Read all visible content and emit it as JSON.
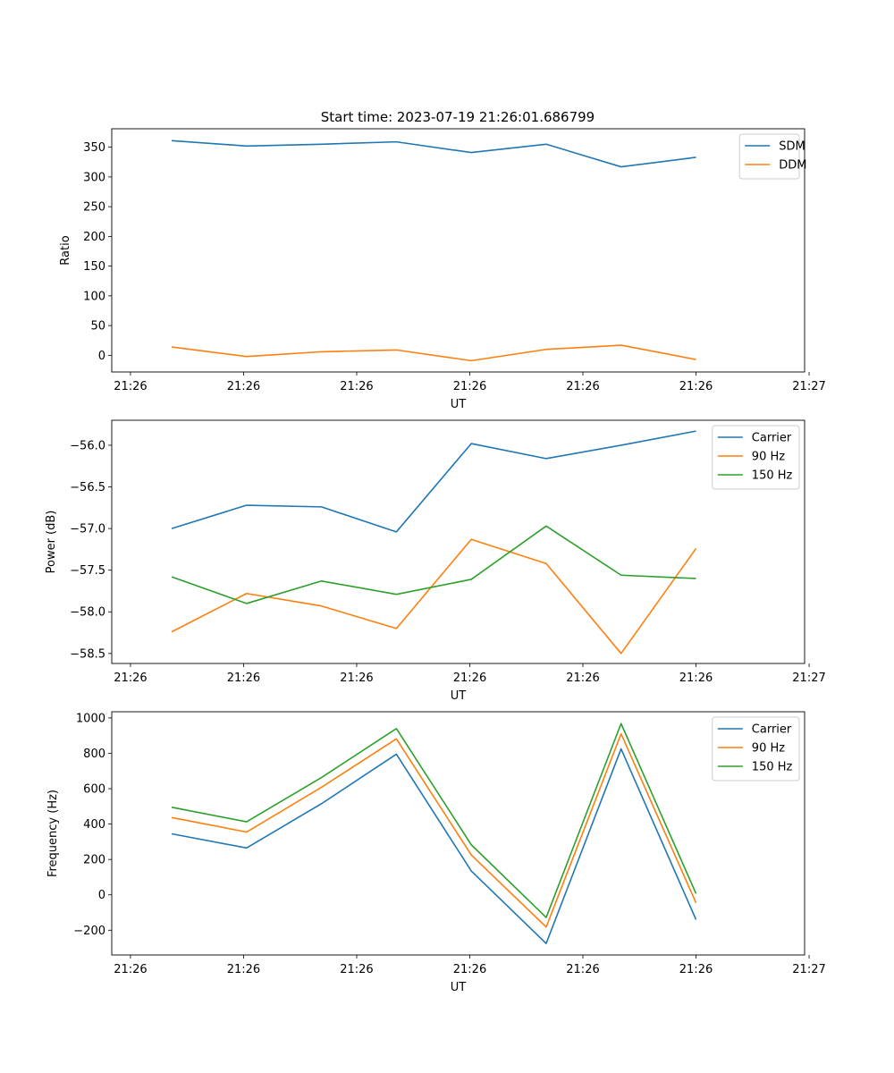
{
  "figure": {
    "title": "Start time: 2023-07-19 21:26:01.686799"
  },
  "colors": {
    "blue": "#1f77b4",
    "orange": "#ff7f0e",
    "green": "#2ca02c"
  },
  "chart_data": [
    {
      "type": "line",
      "title": "Start time: 2023-07-19 21:26:01.686799",
      "xlabel": "UT",
      "ylabel": "Ratio",
      "x": [
        1,
        2,
        3,
        4,
        5,
        6,
        7,
        8
      ],
      "xlim": [
        0.2,
        9.45
      ],
      "x_ticks": [
        0.45,
        1.96,
        3.47,
        4.98,
        6.49,
        8.0,
        9.51
      ],
      "x_tick_labels": [
        "21:26",
        "21:26",
        "21:26",
        "21:26",
        "21:26",
        "21:26",
        "21:27"
      ],
      "ylim": [
        -28,
        381
      ],
      "y_ticks": [
        0,
        50,
        100,
        150,
        200,
        250,
        300,
        350
      ],
      "y_tick_labels": [
        "0",
        "50",
        "100",
        "150",
        "200",
        "250",
        "300",
        "350"
      ],
      "legend": "top-right",
      "series": [
        {
          "name": "SDM",
          "color": "blue",
          "values": [
            361,
            352,
            355,
            359,
            341,
            355,
            317,
            333
          ]
        },
        {
          "name": "DDM",
          "color": "orange",
          "values": [
            14,
            -2,
            6,
            9,
            -9,
            10,
            17,
            -7
          ]
        }
      ]
    },
    {
      "type": "line",
      "title": "",
      "xlabel": "UT",
      "ylabel": "Power (dB)",
      "x": [
        1,
        2,
        3,
        4,
        5,
        6,
        7,
        8
      ],
      "xlim": [
        0.2,
        9.45
      ],
      "x_ticks": [
        0.45,
        1.96,
        3.47,
        4.98,
        6.49,
        8.0,
        9.51
      ],
      "x_tick_labels": [
        "21:26",
        "21:26",
        "21:26",
        "21:26",
        "21:26",
        "21:26",
        "21:27"
      ],
      "ylim": [
        -58.62,
        -55.7
      ],
      "y_ticks": [
        -58.5,
        -58.0,
        -57.5,
        -57.0,
        -56.5,
        -56.0
      ],
      "y_tick_labels": [
        "−58.5",
        "−58.0",
        "−57.5",
        "−57.0",
        "−56.5",
        "−56.0"
      ],
      "legend": "top-right",
      "series": [
        {
          "name": "Carrier",
          "color": "blue",
          "values": [
            -57.0,
            -56.72,
            -56.74,
            -57.04,
            -55.98,
            -56.16,
            -56.0,
            -55.83
          ]
        },
        {
          "name": "90 Hz",
          "color": "orange",
          "values": [
            -58.24,
            -57.78,
            -57.93,
            -58.2,
            -57.13,
            -57.42,
            -58.5,
            -57.24
          ]
        },
        {
          "name": "150 Hz",
          "color": "green",
          "values": [
            -57.58,
            -57.9,
            -57.63,
            -57.79,
            -57.61,
            -56.97,
            -57.56,
            -57.6
          ]
        }
      ]
    },
    {
      "type": "line",
      "title": "",
      "xlabel": "UT",
      "ylabel": "Frequency (Hz)",
      "x": [
        1,
        2,
        3,
        4,
        5,
        6,
        7,
        8
      ],
      "xlim": [
        0.2,
        9.45
      ],
      "x_ticks": [
        0.45,
        1.96,
        3.47,
        4.98,
        6.49,
        8.0,
        9.51
      ],
      "x_tick_labels": [
        "21:26",
        "21:26",
        "21:26",
        "21:26",
        "21:26",
        "21:26",
        "21:27"
      ],
      "ylim": [
        -340,
        1035
      ],
      "y_ticks": [
        -200,
        0,
        200,
        400,
        600,
        800,
        1000
      ],
      "y_tick_labels": [
        "−200",
        "0",
        "200",
        "400",
        "600",
        "800",
        "1000"
      ],
      "legend": "top-right",
      "series": [
        {
          "name": "Carrier",
          "color": "blue",
          "values": [
            345,
            265,
            515,
            795,
            135,
            -275,
            825,
            -140
          ]
        },
        {
          "name": "90 Hz",
          "color": "orange",
          "values": [
            437,
            355,
            608,
            882,
            225,
            -182,
            910,
            -45
          ]
        },
        {
          "name": "150 Hz",
          "color": "green",
          "values": [
            495,
            413,
            663,
            940,
            283,
            -128,
            968,
            7
          ]
        }
      ]
    }
  ]
}
